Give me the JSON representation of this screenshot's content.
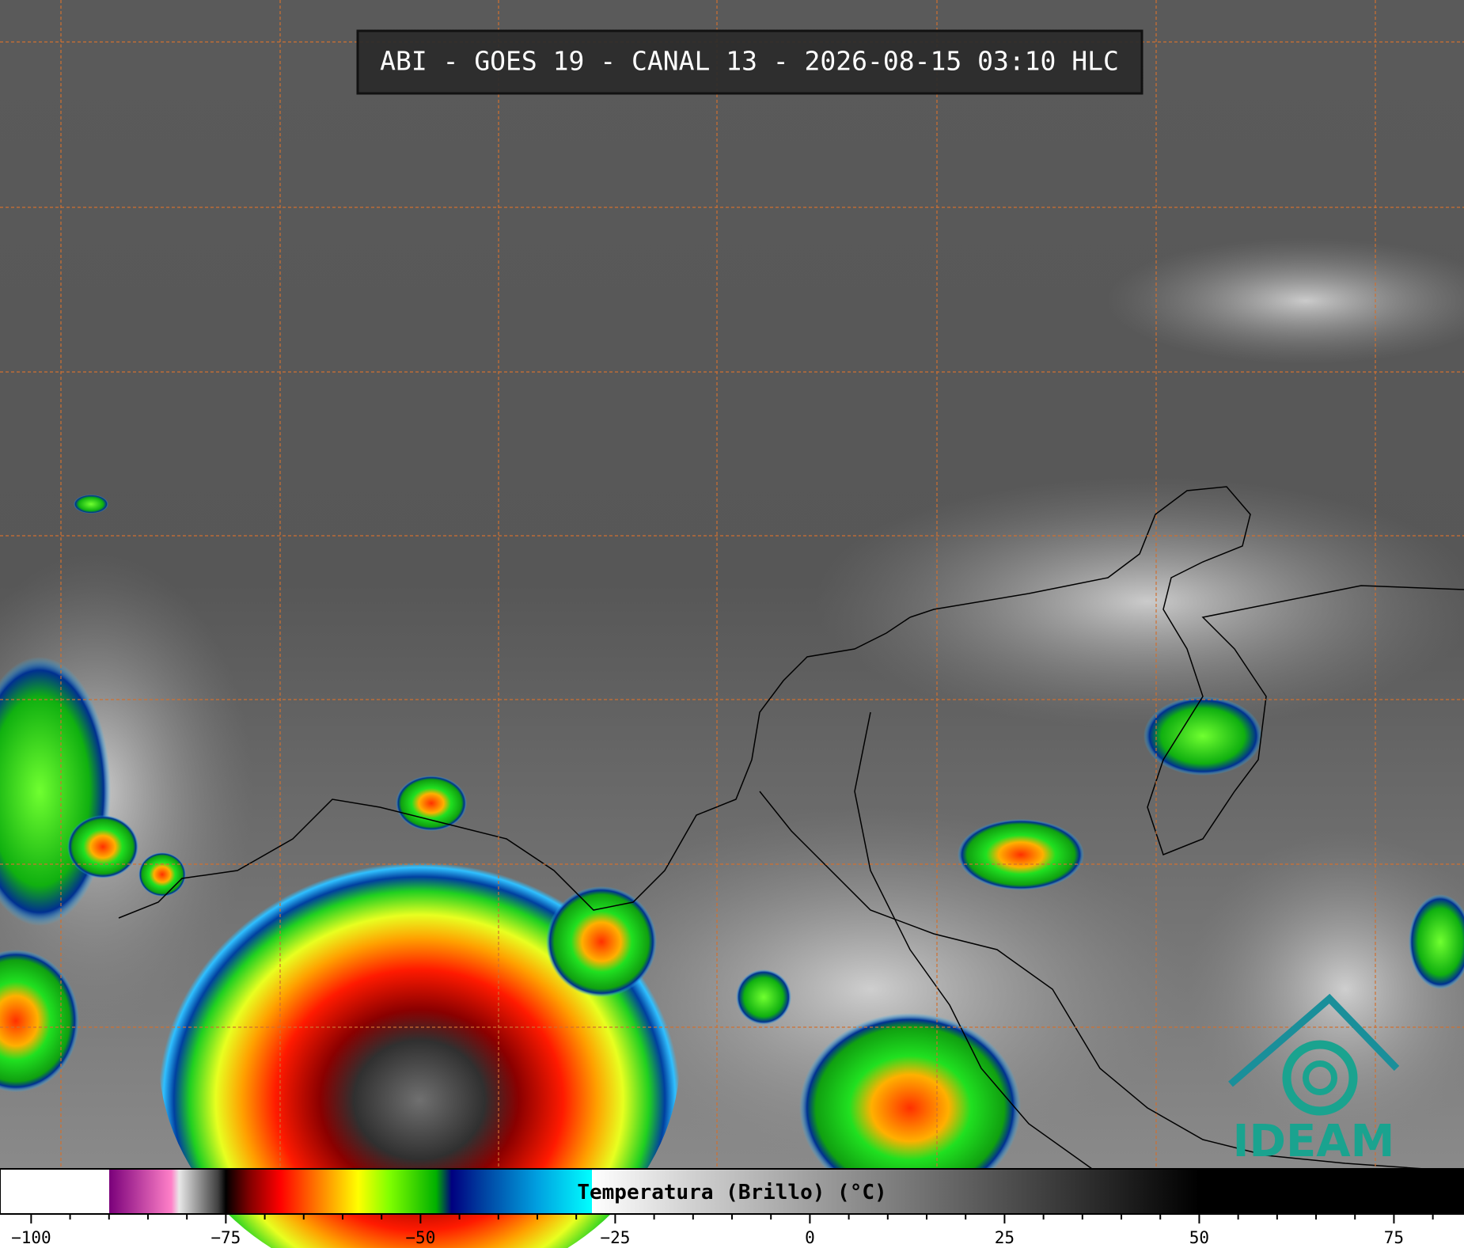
{
  "header": {
    "title": "ABI - GOES 19 - CANAL 13 - 2026-08-15 03:10 HLC"
  },
  "colorbar": {
    "label": "Temperatura (Brillo) (°C)",
    "lim": [
      -104,
      84
    ],
    "ticks": [
      {
        "value": -100,
        "label": "−100"
      },
      {
        "value": -75,
        "label": "−75"
      },
      {
        "value": -50,
        "label": "−50"
      },
      {
        "value": -25,
        "label": "−25"
      },
      0,
      25,
      50,
      75
    ],
    "minor_ticks": [
      -95,
      -90,
      -85,
      -80,
      -70,
      -65,
      -60,
      -55,
      -45,
      -40,
      -35,
      -30,
      -20,
      -15,
      -10,
      -5,
      5,
      10,
      15,
      20,
      30,
      35,
      40,
      45,
      55,
      60,
      65,
      70,
      80
    ],
    "stops": [
      {
        "value": -104,
        "color": "#ffffff"
      },
      {
        "value": -90,
        "color": "#ffffff"
      },
      {
        "value": -90,
        "color": "#7a007a"
      },
      {
        "value": -82,
        "color": "#ff80c8"
      },
      {
        "value": -81,
        "color": "#e8e8e8"
      },
      {
        "value": -76,
        "color": "#404040"
      },
      {
        "value": -75,
        "color": "#000000"
      },
      {
        "value": -72,
        "color": "#800000"
      },
      {
        "value": -68,
        "color": "#ff0000"
      },
      {
        "value": -63,
        "color": "#ff8000"
      },
      {
        "value": -58,
        "color": "#ffff00"
      },
      {
        "value": -54,
        "color": "#80ff00"
      },
      {
        "value": -48,
        "color": "#00b000"
      },
      {
        "value": -46,
        "color": "#000080"
      },
      {
        "value": -42,
        "color": "#0040a0"
      },
      {
        "value": -35,
        "color": "#00a0e0"
      },
      {
        "value": -28,
        "color": "#00ffff"
      },
      {
        "value": -28,
        "color": "#ffffff"
      },
      {
        "value": -15,
        "color": "#d0d0d0"
      },
      {
        "value": 40,
        "color": "#202020"
      },
      {
        "value": 50,
        "color": "#000000"
      },
      {
        "value": 84,
        "color": "#000000"
      }
    ]
  },
  "logo": {
    "text": "IDEAM"
  }
}
